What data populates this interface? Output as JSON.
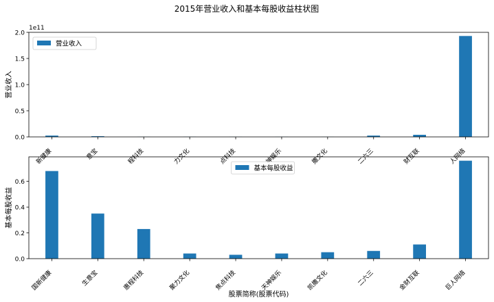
{
  "figure": {
    "title": "2015年营业收入和基本每股收益柱状图"
  },
  "chart_data": [
    {
      "type": "bar",
      "title": "",
      "xlabel": "",
      "ylabel": "营业收入",
      "offset_label": "1e11",
      "categories": [
        "国新健康",
        "生意宝",
        "惠程科技",
        "聚力文化",
        "焦点科技",
        "天神娱乐",
        "凯撒文化",
        "二六三",
        "金财互联",
        "巨人网络"
      ],
      "tick_labels_display": [
        "新健康",
        "意宝",
        "程科技",
        "力文化",
        "点科技",
        "神娱乐",
        "撒文化",
        "二六三",
        "财互联",
        "人网络"
      ],
      "series": [
        {
          "name": "营业收入",
          "color": "#1f77b4",
          "values": [
            2500000000.0,
            1300000000.0,
            200000000.0,
            300000000.0,
            200000000.0,
            200000000.0,
            200000000.0,
            2500000000.0,
            4000000000.0,
            193000000000.0
          ]
        }
      ],
      "ylim": [
        0,
        200000000000.0
      ],
      "yticks": [
        0,
        50000000000.0,
        100000000000.0,
        150000000000.0,
        200000000000.0
      ],
      "ytick_labels": [
        "0.0",
        "0.5",
        "1.0",
        "1.5",
        "2.0"
      ],
      "legend": "upper-left",
      "grid": false
    },
    {
      "type": "bar",
      "title": "",
      "xlabel": "股票简称(股票代码)",
      "ylabel": "基本每股收益",
      "categories": [
        "国新健康",
        "生意宝",
        "惠程科技",
        "聚力文化",
        "焦点科技",
        "天神娱乐",
        "凯撒文化",
        "二六三",
        "金财互联",
        "巨人网络"
      ],
      "series": [
        {
          "name": "基本每股收益",
          "color": "#1f77b4",
          "values": [
            0.68,
            0.35,
            0.23,
            0.04,
            0.03,
            0.04,
            0.05,
            0.06,
            0.11,
            0.76
          ]
        }
      ],
      "ylim": [
        0,
        0.79
      ],
      "yticks": [
        0,
        0.2,
        0.4,
        0.6
      ],
      "ytick_labels": [
        "0.0",
        "0.2",
        "0.4",
        "0.6"
      ],
      "legend": "upper-center",
      "grid": false
    }
  ]
}
